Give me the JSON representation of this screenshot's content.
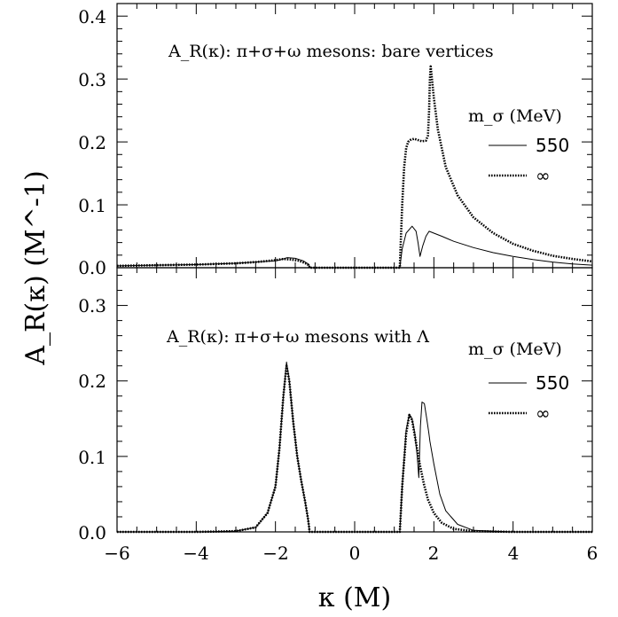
{
  "chart_data": [
    {
      "type": "line",
      "panel": "top",
      "title": "A_R(κ): π+σ+ω mesons: bare vertices",
      "xlabel": "κ (M)",
      "ylabel": "A_R(κ) (M^-1)",
      "xlim": [
        -6,
        6
      ],
      "ylim": [
        0,
        0.42
      ],
      "xticks": [
        "−6",
        "−4",
        "−2",
        "0",
        "2",
        "4",
        "6"
      ],
      "yticks": [
        "0.0",
        "0.1",
        "0.2",
        "0.3",
        "0.4"
      ],
      "grid": false,
      "legend": {
        "title": "m_σ (MeV)",
        "placement": "right",
        "entries": [
          {
            "label": "550",
            "style": "solid-thin"
          },
          {
            "label": "∞",
            "style": "dotted"
          }
        ]
      },
      "series": [
        {
          "name": "550",
          "x": [
            -6.0,
            -5.0,
            -4.0,
            -3.0,
            -2.5,
            -2.0,
            -1.85,
            -1.7,
            -1.5,
            -1.3,
            -1.15,
            -1.14,
            1.14,
            1.2,
            1.3,
            1.45,
            1.55,
            1.6,
            1.65,
            1.72,
            1.8,
            1.85,
            1.88,
            2.0,
            2.2,
            2.5,
            3.0,
            3.5,
            4.0,
            4.5,
            5.0,
            5.5,
            6.0
          ],
          "y": [
            0.003,
            0.004,
            0.005,
            0.007,
            0.009,
            0.011,
            0.013,
            0.016,
            0.015,
            0.011,
            0.005,
            0.0,
            0.0,
            0.03,
            0.055,
            0.066,
            0.058,
            0.04,
            0.018,
            0.035,
            0.05,
            0.055,
            0.058,
            0.055,
            0.05,
            0.042,
            0.032,
            0.024,
            0.018,
            0.013,
            0.009,
            0.006,
            0.004
          ]
        },
        {
          "name": "∞",
          "x": [
            -6.0,
            -5.0,
            -4.0,
            -3.0,
            -2.5,
            -2.0,
            -1.8,
            -1.6,
            -1.4,
            -1.2,
            -1.15,
            -1.14,
            1.14,
            1.2,
            1.25,
            1.3,
            1.35,
            1.4,
            1.5,
            1.6,
            1.7,
            1.8,
            1.85,
            1.88,
            1.9,
            1.92,
            2.0,
            2.1,
            2.3,
            2.6,
            3.0,
            3.5,
            4.0,
            4.5,
            5.0,
            5.5,
            6.0
          ],
          "y": [
            0.003,
            0.004,
            0.005,
            0.007,
            0.009,
            0.012,
            0.014,
            0.013,
            0.011,
            0.006,
            0.003,
            0.0,
            0.0,
            0.1,
            0.16,
            0.19,
            0.2,
            0.203,
            0.205,
            0.203,
            0.201,
            0.202,
            0.21,
            0.25,
            0.3,
            0.32,
            0.27,
            0.22,
            0.16,
            0.115,
            0.08,
            0.055,
            0.038,
            0.027,
            0.019,
            0.014,
            0.01
          ]
        }
      ]
    },
    {
      "type": "line",
      "panel": "bottom",
      "title": "A_R(κ): π+σ+ω mesons with Λ",
      "xlabel": "κ (M)",
      "ylabel": "A_R(κ) (M^-1)",
      "xlim": [
        -6,
        6
      ],
      "ylim": [
        0,
        0.35
      ],
      "xticks": [
        "−6",
        "−4",
        "−2",
        "0",
        "2",
        "4",
        "6"
      ],
      "yticks": [
        "0.0",
        "0.1",
        "0.2",
        "0.3"
      ],
      "grid": false,
      "legend": {
        "title": "m_σ (MeV)",
        "placement": "right",
        "entries": [
          {
            "label": "550",
            "style": "solid-thin"
          },
          {
            "label": "∞",
            "style": "dotted"
          }
        ]
      },
      "series": [
        {
          "name": "550",
          "x": [
            -6.0,
            -4.0,
            -3.0,
            -2.5,
            -2.2,
            -2.0,
            -1.9,
            -1.8,
            -1.72,
            -1.65,
            -1.55,
            -1.45,
            -1.35,
            -1.25,
            -1.18,
            -1.15,
            -1.14,
            1.14,
            1.2,
            1.3,
            1.38,
            1.45,
            1.52,
            1.58,
            1.62,
            1.66,
            1.7,
            1.76,
            1.82,
            1.87,
            1.9,
            2.0,
            2.15,
            2.3,
            2.6,
            3.0,
            4.0,
            6.0
          ],
          "y": [
            0.0,
            0.0,
            0.001,
            0.006,
            0.025,
            0.06,
            0.11,
            0.18,
            0.225,
            0.2,
            0.145,
            0.1,
            0.068,
            0.04,
            0.018,
            0.006,
            0.0,
            0.0,
            0.06,
            0.135,
            0.156,
            0.15,
            0.13,
            0.1,
            0.072,
            0.14,
            0.172,
            0.17,
            0.15,
            0.132,
            0.12,
            0.09,
            0.05,
            0.028,
            0.01,
            0.002,
            0.0,
            0.0
          ]
        },
        {
          "name": "∞",
          "x": [
            -6.0,
            -4.0,
            -3.0,
            -2.5,
            -2.2,
            -2.0,
            -1.9,
            -1.8,
            -1.72,
            -1.65,
            -1.55,
            -1.45,
            -1.35,
            -1.25,
            -1.18,
            -1.15,
            -1.14,
            1.14,
            1.2,
            1.3,
            1.38,
            1.45,
            1.55,
            1.65,
            1.75,
            1.85,
            2.0,
            2.2,
            2.5,
            3.0,
            4.0,
            6.0
          ],
          "y": [
            0.0,
            0.0,
            0.001,
            0.006,
            0.025,
            0.06,
            0.11,
            0.18,
            0.22,
            0.2,
            0.145,
            0.1,
            0.068,
            0.04,
            0.018,
            0.006,
            0.0,
            0.0,
            0.06,
            0.13,
            0.155,
            0.148,
            0.118,
            0.088,
            0.063,
            0.043,
            0.025,
            0.012,
            0.004,
            0.001,
            0.0,
            0.0
          ]
        }
      ]
    }
  ]
}
